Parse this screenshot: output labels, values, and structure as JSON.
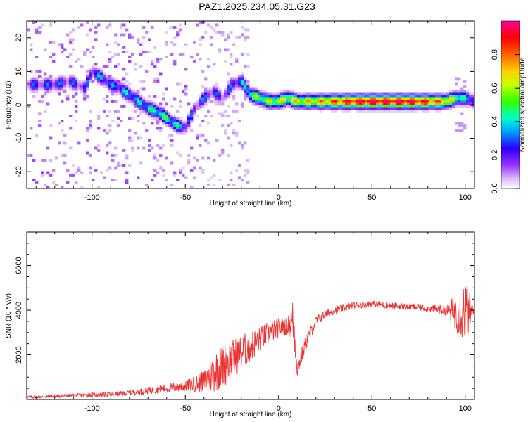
{
  "title": "PAZ1.2025.234.05.31.G23",
  "chart_data": [
    {
      "type": "heatmap",
      "xlabel": "Height of straight line (km)",
      "ylabel": "Frequency (Hz)",
      "xlim": [
        -135,
        105
      ],
      "ylim": [
        -25,
        25
      ],
      "x_ticks": [
        -100,
        -50,
        0,
        50,
        100
      ],
      "y_ticks": [
        -20,
        -10,
        0,
        10,
        20
      ],
      "colorbar": {
        "label": "Normalized spectral amplitude",
        "range": [
          0,
          1
        ],
        "ticks": [
          0.0,
          0.2,
          0.4,
          0.6,
          0.8
        ],
        "tick_labels": [
          "0.0",
          "0.2",
          "0.4",
          "0.6",
          "0.8"
        ]
      },
      "ridge": {
        "description": "main frequency trace",
        "x": [
          -128,
          -120,
          -112,
          -104,
          -100,
          -95,
          -90,
          -85,
          -80,
          -75,
          -70,
          -65,
          -60,
          -55,
          -50,
          -45,
          -40,
          -35,
          -30,
          -25,
          -20,
          -15,
          -10,
          -5,
          0,
          5,
          10,
          20,
          30,
          40,
          50,
          60,
          70,
          80,
          90,
          95,
          100,
          105
        ],
        "freq_hz": [
          6,
          6,
          7,
          5,
          10,
          8,
          6,
          5,
          3,
          1,
          -1,
          -2,
          -4,
          -6,
          -7,
          -1,
          2,
          4,
          2,
          6,
          7,
          3,
          2,
          1,
          1,
          2,
          1,
          1,
          1,
          1,
          1,
          1,
          1,
          1,
          1,
          2,
          2,
          1
        ],
        "amplitude": [
          0.2,
          0.25,
          0.2,
          0.2,
          0.25,
          0.3,
          0.25,
          0.3,
          0.35,
          0.35,
          0.4,
          0.45,
          0.45,
          0.4,
          0.25,
          0.2,
          0.25,
          0.2,
          0.2,
          0.25,
          0.3,
          0.5,
          0.55,
          0.55,
          0.6,
          0.6,
          0.65,
          0.7,
          0.8,
          0.9,
          0.95,
          0.95,
          0.95,
          0.85,
          0.7,
          0.55,
          0.35,
          0.3
        ]
      }
    },
    {
      "type": "line",
      "xlabel": "Height of straight line (km)",
      "ylabel": "SNR (10 * v/v)",
      "xlim": [
        -135,
        105
      ],
      "ylim": [
        0,
        7500
      ],
      "x_ticks": [
        -100,
        -50,
        0,
        50,
        100
      ],
      "y_ticks": [
        2000,
        4000,
        6000
      ],
      "series": [
        {
          "name": "SNR",
          "color": "#ee3333",
          "x": [
            -135,
            -120,
            -100,
            -85,
            -70,
            -60,
            -50,
            -45,
            -40,
            -35,
            -30,
            -25,
            -20,
            -15,
            -10,
            -5,
            0,
            5,
            8,
            10,
            15,
            20,
            25,
            30,
            35,
            40,
            50,
            55,
            60,
            70,
            80,
            90,
            95,
            100,
            105
          ],
          "y": [
            100,
            150,
            200,
            250,
            400,
            500,
            600,
            700,
            800,
            1200,
            1500,
            1800,
            2100,
            2400,
            2700,
            3000,
            3200,
            3300,
            3500,
            1400,
            2600,
            3500,
            3800,
            4000,
            4100,
            4200,
            4300,
            4250,
            4200,
            4150,
            4100,
            4000,
            3900,
            4000,
            3900
          ],
          "noise": [
            60,
            80,
            100,
            120,
            160,
            200,
            250,
            350,
            500,
            900,
            1000,
            900,
            800,
            700,
            600,
            500,
            450,
            400,
            1200,
            400,
            350,
            250,
            200,
            180,
            170,
            160,
            150,
            160,
            150,
            150,
            160,
            250,
            900,
            1500,
            200
          ]
        }
      ]
    }
  ]
}
